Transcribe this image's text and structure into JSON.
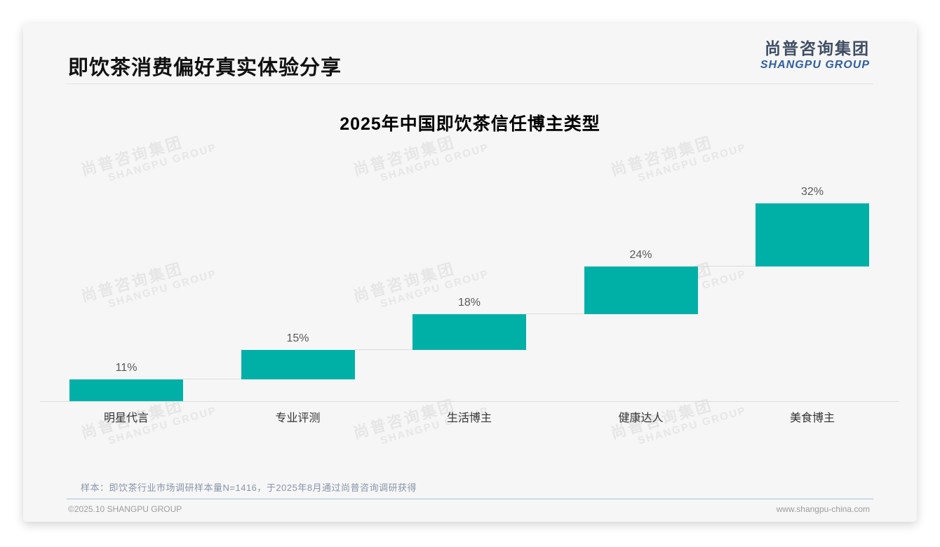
{
  "page": {
    "title": "即饮茶消费偏好真实体验分享",
    "logo": {
      "cn": "尚普咨询集团",
      "en": "SHANGPU GROUP"
    },
    "watermark": {
      "cn": "尚普咨询集团",
      "en": "SHANGPU GROUP"
    },
    "footnote": "样本：即饮茶行业市场调研样本量N=1416，于2025年8月通过尚普咨询调研获得",
    "footer": {
      "left": "©2025.10 SHANGPU GROUP",
      "right": "www.shangpu-china.com"
    }
  },
  "chart_data": {
    "type": "bar",
    "subtype": "stepped-waterfall",
    "title": "2025年中国即饮茶信任博主类型",
    "categories": [
      "明星代言",
      "专业评测",
      "生活博主",
      "健康达人",
      "美食博主"
    ],
    "values": [
      11,
      15,
      18,
      24,
      32
    ],
    "value_labels": [
      "11%",
      "15%",
      "18%",
      "24%",
      "32%"
    ],
    "cumulative": [
      11,
      26,
      44,
      68,
      100
    ],
    "unit": "%",
    "xlabel": "",
    "ylabel": "",
    "ylim": [
      0,
      100
    ],
    "grid": false,
    "legend": false,
    "bar_color": "#00B0A7",
    "value_label_color": "#595959",
    "category_label_color": "#333333",
    "connector_color": "#dcdcdc",
    "baseline_color": "#dcdcdc"
  }
}
